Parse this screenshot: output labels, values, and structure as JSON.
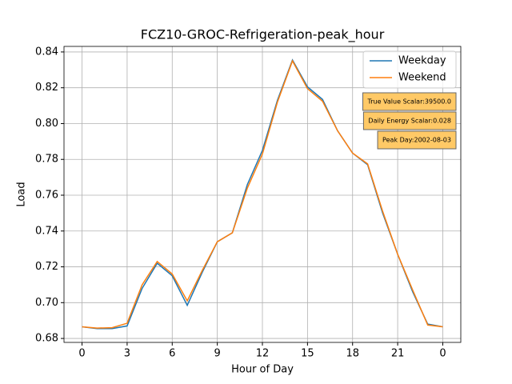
{
  "chart_data": {
    "type": "line",
    "title": "FCZ10-GROC-Refrigeration-peak_hour",
    "xlabel": "Hour of Day",
    "ylabel": "Load",
    "x": [
      0,
      1,
      2,
      3,
      4,
      5,
      6,
      7,
      8,
      9,
      10,
      11,
      12,
      13,
      14,
      15,
      16,
      17,
      18,
      19,
      20,
      21,
      22,
      23,
      24
    ],
    "series": [
      {
        "name": "Weekday",
        "color": "#1f77b4",
        "values": [
          0.6865,
          0.6855,
          0.6855,
          0.687,
          0.708,
          0.722,
          0.715,
          0.6985,
          0.717,
          0.734,
          0.739,
          0.766,
          0.785,
          0.813,
          0.8355,
          0.8205,
          0.8135,
          0.796,
          0.7835,
          0.777,
          0.75,
          0.727,
          0.706,
          0.688,
          0.6865
        ]
      },
      {
        "name": "Weekend",
        "color": "#ff7f0e",
        "values": [
          0.6865,
          0.6858,
          0.686,
          0.6885,
          0.71,
          0.723,
          0.716,
          0.701,
          0.718,
          0.734,
          0.739,
          0.764,
          0.783,
          0.812,
          0.835,
          0.8195,
          0.8125,
          0.796,
          0.7835,
          0.7775,
          0.751,
          0.727,
          0.707,
          0.6875,
          0.6865
        ]
      }
    ],
    "xlim": [
      -1.2,
      25.2
    ],
    "xticks": [
      0,
      3,
      6,
      9,
      12,
      15,
      18,
      21,
      {
        "value": 24,
        "label": "0"
      }
    ],
    "ylim": [
      0.6778,
      0.8431
    ],
    "yticks": [
      {
        "value": 0.68,
        "label": "0.68"
      },
      {
        "value": 0.7,
        "label": "0.70"
      },
      {
        "value": 0.72,
        "label": "0.72"
      },
      {
        "value": 0.74,
        "label": "0.74"
      },
      {
        "value": 0.76,
        "label": "0.76"
      },
      {
        "value": 0.78,
        "label": "0.78"
      },
      {
        "value": 0.8,
        "label": "0.80"
      },
      {
        "value": 0.82,
        "label": "0.82"
      },
      {
        "value": 0.84,
        "label": "0.84"
      }
    ],
    "grid": true,
    "legend": "upper right",
    "annotations": [
      "True Value Scalar:39500.0",
      "Daily Energy Scalar:0.028",
      "Peak Day:2002-08-03"
    ]
  }
}
